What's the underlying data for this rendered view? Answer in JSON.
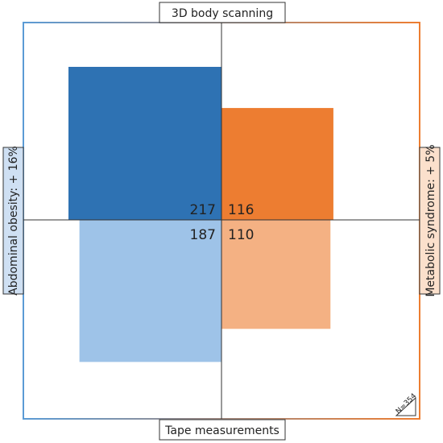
{
  "chart_data": {
    "type": "fourfold",
    "top_label": "3D body scanning",
    "bottom_label": "Tape measurements",
    "left_label": "Abdominal obesity: + 16%",
    "right_label": "Metabolic syndrome: + 5%",
    "sample_size_label": "N=354",
    "quadrants": {
      "top_left": 217,
      "top_right": 116,
      "bottom_left": 187,
      "bottom_right": 110
    },
    "colors": {
      "top_left": "#2e72b3",
      "top_right": "#ed7d31",
      "bottom_left": "#9ec3e8",
      "bottom_right": "#f4b183",
      "frame_left": "#5b9bd5",
      "frame_right": "#ed7d31",
      "left_label_bg": "#cfe0f3",
      "right_label_bg": "#fbe0cc"
    }
  }
}
